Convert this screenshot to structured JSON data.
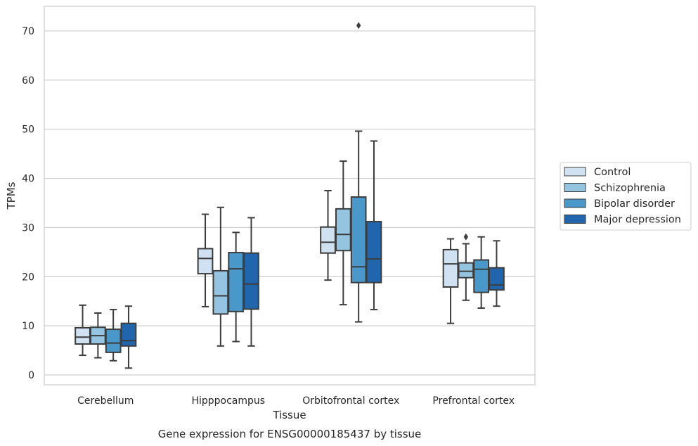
{
  "chart_data": {
    "type": "box",
    "title": "",
    "caption": "Gene expression for ENSG00000185437 by tissue",
    "xlabel": "Tissue",
    "ylabel": "TPMs",
    "ylim": [
      -2,
      75
    ],
    "yticks": [
      0,
      10,
      20,
      30,
      40,
      50,
      60,
      70
    ],
    "grid": "horizontal",
    "legend_position": "right",
    "categories": [
      "Cerebellum",
      "Hipppocampus",
      "Orbitofrontal cortex",
      "Prefrontal cortex"
    ],
    "series": [
      {
        "name": "Control",
        "color": "#d0e1f2",
        "boxes": [
          {
            "whisker_low": 4.0,
            "q1": 6.3,
            "median": 7.7,
            "q3": 9.6,
            "whisker_high": 14.2,
            "outliers": []
          },
          {
            "whisker_low": 13.9,
            "q1": 20.6,
            "median": 23.7,
            "q3": 25.7,
            "whisker_high": 32.7,
            "outliers": []
          },
          {
            "whisker_low": 19.3,
            "q1": 24.8,
            "median": 27.0,
            "q3": 30.1,
            "whisker_high": 37.5,
            "outliers": []
          },
          {
            "whisker_low": 10.5,
            "q1": 17.9,
            "median": 22.6,
            "q3": 25.5,
            "whisker_high": 27.7,
            "outliers": []
          }
        ]
      },
      {
        "name": "Schizophrenia",
        "color": "#94c4df",
        "boxes": [
          {
            "whisker_low": 3.5,
            "q1": 6.3,
            "median": 8.0,
            "q3": 9.7,
            "whisker_high": 12.6,
            "outliers": []
          },
          {
            "whisker_low": 5.9,
            "q1": 12.4,
            "median": 16.1,
            "q3": 21.2,
            "whisker_high": 34.1,
            "outliers": []
          },
          {
            "whisker_low": 14.3,
            "q1": 25.3,
            "median": 28.6,
            "q3": 33.8,
            "whisker_high": 43.5,
            "outliers": []
          },
          {
            "whisker_low": 15.2,
            "q1": 19.8,
            "median": 21.1,
            "q3": 22.8,
            "whisker_high": 26.7,
            "outliers": [
              28.1
            ]
          }
        ]
      },
      {
        "name": "Bipolar disorder",
        "color": "#4a98c9",
        "boxes": [
          {
            "whisker_low": 2.9,
            "q1": 4.6,
            "median": 6.5,
            "q3": 9.3,
            "whisker_high": 13.3,
            "outliers": []
          },
          {
            "whisker_low": 6.8,
            "q1": 12.9,
            "median": 21.6,
            "q3": 24.9,
            "whisker_high": 29.0,
            "outliers": []
          },
          {
            "whisker_low": 10.8,
            "q1": 18.8,
            "median": 22.0,
            "q3": 36.2,
            "whisker_high": 49.6,
            "outliers": [
              71.1
            ]
          },
          {
            "whisker_low": 13.6,
            "q1": 16.8,
            "median": 21.5,
            "q3": 23.4,
            "whisker_high": 28.1,
            "outliers": []
          }
        ]
      },
      {
        "name": "Major depression",
        "color": "#2166ac",
        "boxes": [
          {
            "whisker_low": 1.4,
            "q1": 5.9,
            "median": 7.0,
            "q3": 10.5,
            "whisker_high": 14.0,
            "outliers": []
          },
          {
            "whisker_low": 5.9,
            "q1": 13.4,
            "median": 18.5,
            "q3": 24.8,
            "whisker_high": 32.0,
            "outliers": []
          },
          {
            "whisker_low": 13.3,
            "q1": 18.8,
            "median": 23.6,
            "q3": 31.2,
            "whisker_high": 47.6,
            "outliers": []
          },
          {
            "whisker_low": 14.0,
            "q1": 17.3,
            "median": 18.3,
            "q3": 21.8,
            "whisker_high": 27.3,
            "outliers": []
          }
        ]
      }
    ]
  }
}
